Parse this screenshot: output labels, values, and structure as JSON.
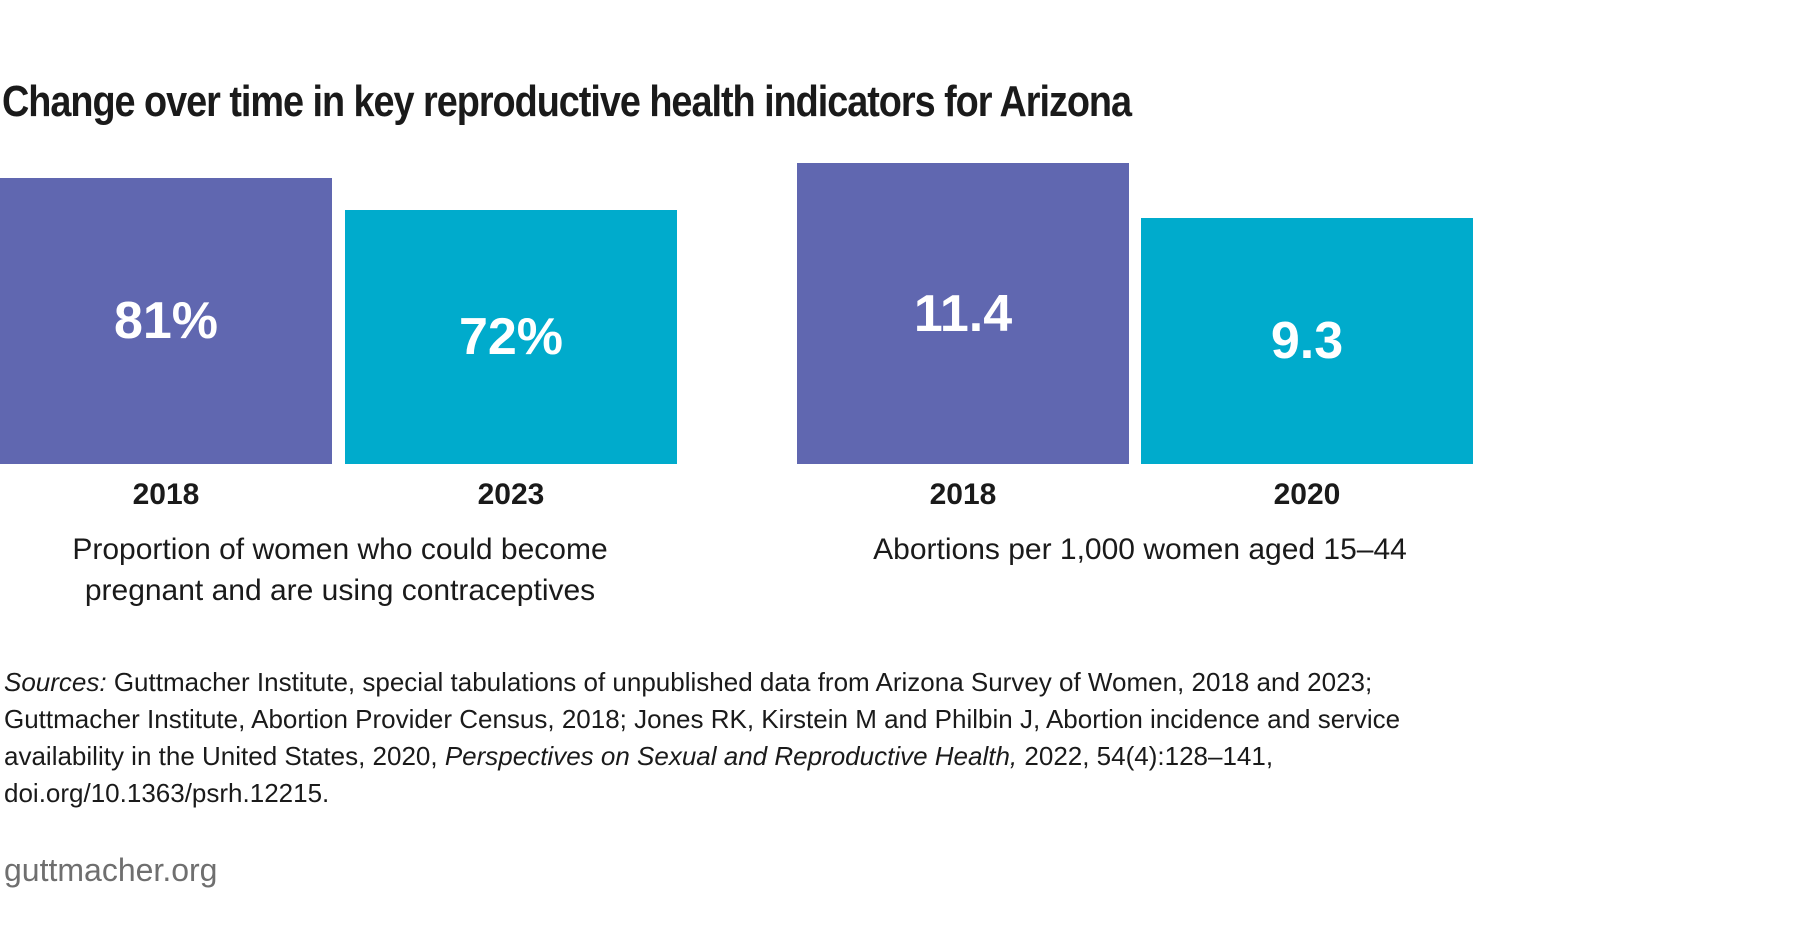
{
  "title": "Change over time in key reproductive health indicators for Arizona",
  "colors": {
    "bar_2018": "#6067b0",
    "bar_later": "#00abcc",
    "value_text": "#ffffff"
  },
  "chart_data": [
    {
      "type": "bar",
      "categories": [
        "2018",
        "2023"
      ],
      "values": [
        81,
        72
      ],
      "value_labels": [
        "81%",
        "72%"
      ],
      "unit": "%",
      "xlabel": "Proportion of women who could become pregnant and are using contraceptives",
      "grid": false,
      "legend": "none"
    },
    {
      "type": "bar",
      "categories": [
        "2018",
        "2020"
      ],
      "values": [
        11.4,
        9.3
      ],
      "value_labels": [
        "11.4",
        "9.3"
      ],
      "xlabel": "Abortions per 1,000 women aged 15–44",
      "grid": false,
      "legend": "none"
    }
  ],
  "sources": {
    "label": "Sources:",
    "text1": " Guttmacher Institute, special tabulations of unpublished data from Arizona Survey of Women, 2018 and 2023; Guttmacher Institute, Abortion Provider Census, 2018; Jones RK, Kirstein M and Philbin J, Abortion incidence and service availability in the United States, 2020, ",
    "journal": "Perspectives on Sexual and Reproductive Health,",
    "text2": " 2022, 54(4):128–141, doi.org/10.1363/psrh.12215."
  },
  "site": "guttmacher.org"
}
